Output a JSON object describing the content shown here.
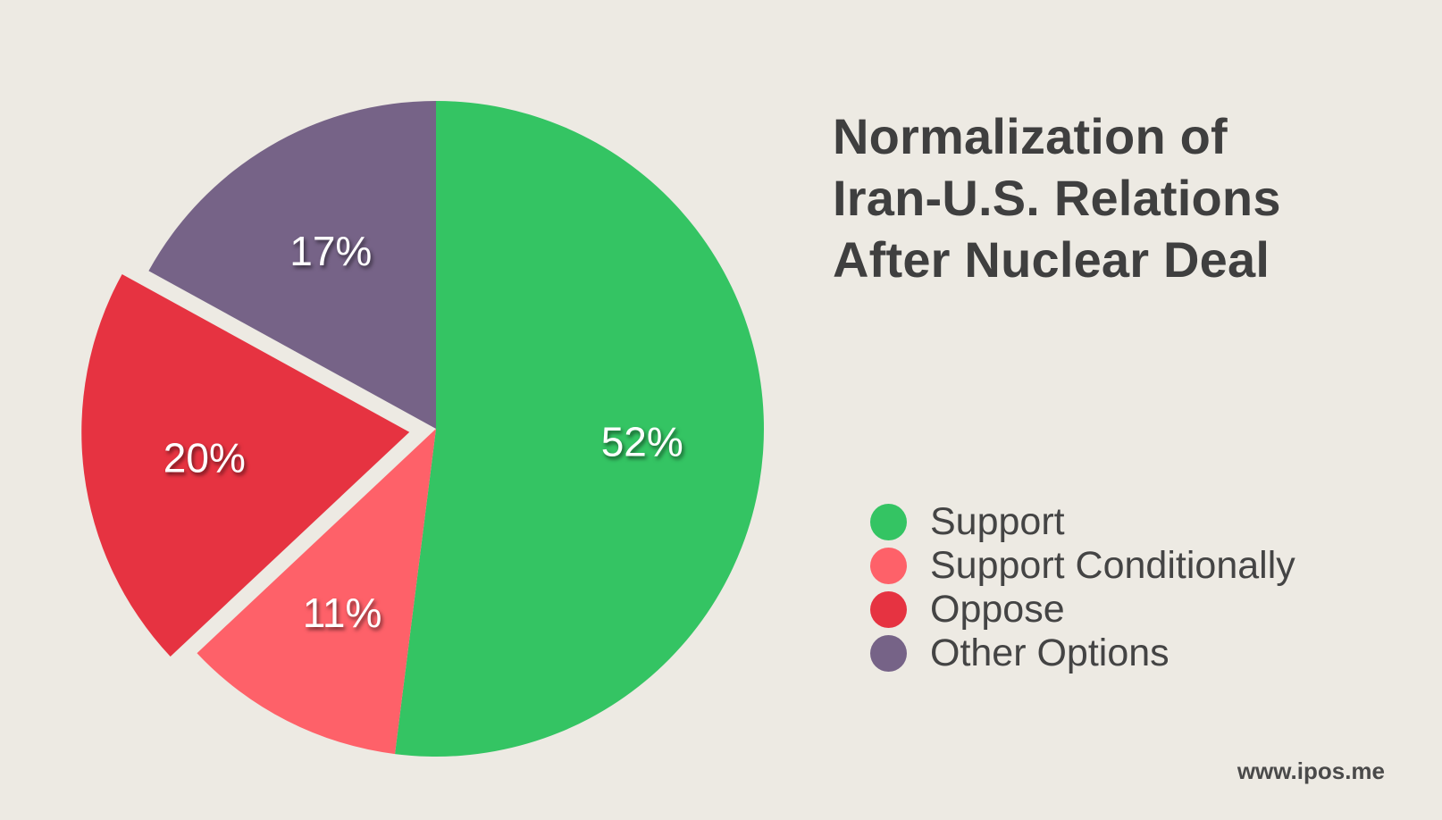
{
  "chart_data": {
    "type": "pie",
    "title_lines": [
      "Normalization of",
      "Iran-U.S. Relations",
      "After Nuclear Deal"
    ],
    "slices": [
      {
        "label": "Support",
        "value": 52,
        "value_label": "52%",
        "color": "#34c463"
      },
      {
        "label": "Support Conditionally",
        "value": 11,
        "value_label": "11%",
        "color": "#fe6169"
      },
      {
        "label": "Oppose",
        "value": 20,
        "value_label": "20%",
        "color": "#e63341",
        "exploded": true
      },
      {
        "label": "Other Options",
        "value": 17,
        "value_label": "17%",
        "color": "#766387"
      }
    ],
    "legend_position": "right"
  },
  "source": "www.ipos.me",
  "background_color": "#edeae3"
}
